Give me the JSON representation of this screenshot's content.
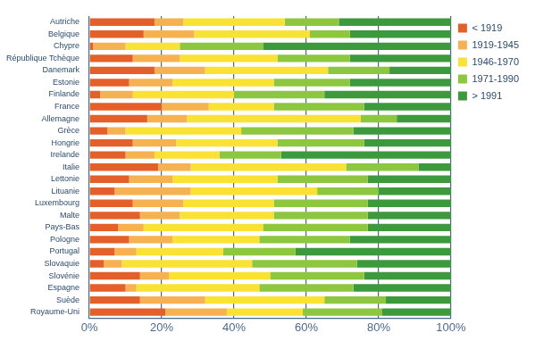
{
  "chart_data": {
    "type": "bar",
    "orientation": "horizontal",
    "stacked": true,
    "grid": true,
    "legend": "right",
    "categories": [
      "Autriche",
      "Belgique",
      "Chypre",
      "République Tchèque",
      "Danemark",
      "Estonie",
      "Finlande",
      "France",
      "Allemagne",
      "Grèce",
      "Hongrie",
      "Irelande",
      "Italie",
      "Lettonie",
      "Lituanie",
      "Luxembourg",
      "Malte",
      "Pays-Bas",
      "Pologne",
      "Portugal",
      "Slovaquie",
      "Slovénie",
      "Espagne",
      "Suède",
      "Royaume-Uni"
    ],
    "series": [
      {
        "name": "< 1919",
        "color": "#e4602a",
        "values": [
          18,
          15,
          1,
          12,
          18,
          11,
          3,
          20,
          16,
          5,
          12,
          10,
          19,
          11,
          7,
          12,
          14,
          8,
          11,
          7,
          4,
          14,
          10,
          14,
          21
        ]
      },
      {
        "name": "1919-1945",
        "color": "#f6b150",
        "values": [
          8,
          14,
          9,
          13,
          14,
          12,
          9,
          13,
          11,
          5,
          12,
          8,
          9,
          12,
          21,
          14,
          11,
          7,
          12,
          6,
          5,
          8,
          3,
          18,
          17
        ]
      },
      {
        "name": "1946-1970",
        "color": "#f9e234",
        "values": [
          28,
          32,
          15,
          27,
          34,
          28,
          28,
          18,
          48,
          32,
          28,
          18,
          43,
          29,
          35,
          25,
          26,
          33,
          24,
          24,
          36,
          28,
          34,
          33,
          21
        ]
      },
      {
        "name": "1971-1990",
        "color": "#8dc63f",
        "values": [
          15,
          11,
          23,
          20,
          17,
          21,
          25,
          25,
          10,
          31,
          24,
          17,
          20,
          25,
          17,
          26,
          26,
          29,
          25,
          20,
          29,
          26,
          26,
          17,
          22
        ]
      },
      {
        "name": "> 1991",
        "color": "#3c9a3c",
        "values": [
          31,
          28,
          52,
          28,
          17,
          28,
          35,
          24,
          15,
          27,
          24,
          47,
          9,
          23,
          20,
          23,
          23,
          23,
          28,
          43,
          26,
          24,
          27,
          18,
          19
        ]
      }
    ],
    "xlim": [
      0,
      100
    ],
    "xticks": [
      {
        "value": 0,
        "label": "0%"
      },
      {
        "value": 20,
        "label": "20%"
      },
      {
        "value": 40,
        "label": "40%"
      },
      {
        "value": 60,
        "label": "60%"
      },
      {
        "value": 80,
        "label": "80%"
      },
      {
        "value": 100,
        "label": "100%"
      }
    ]
  }
}
